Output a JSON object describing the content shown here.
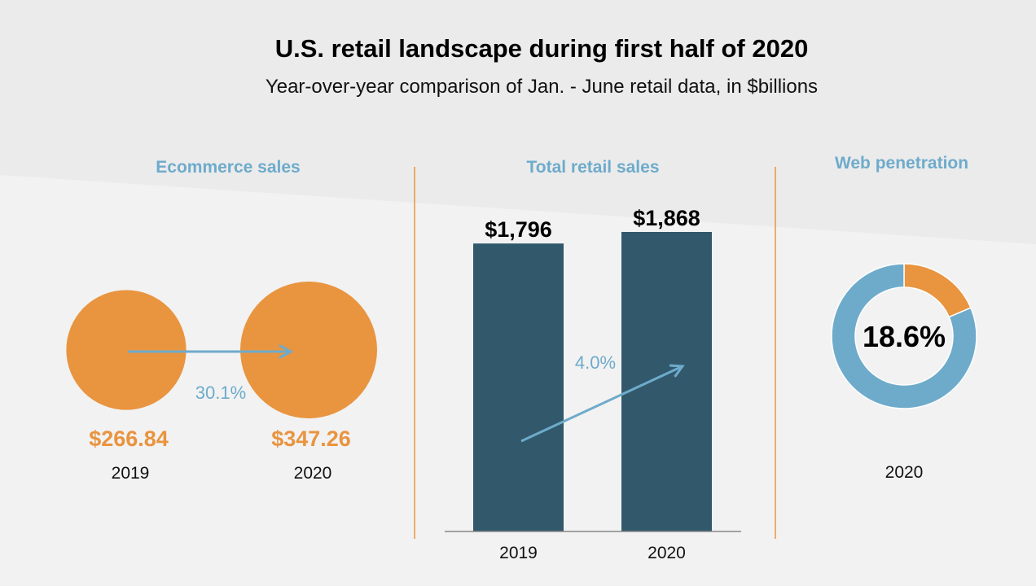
{
  "title": "U.S. retail landscape during first half of 2020",
  "subtitle": "Year-over-year comparison of Jan. - June retail data, in $billions",
  "colors": {
    "orange": "#e9943f",
    "blue": "#6eabcb",
    "navy": "#32586c",
    "divider": "#e9943f"
  },
  "chart_data": [
    {
      "type": "bubble",
      "title": "Ecommerce sales",
      "categories": [
        "2019",
        "2020"
      ],
      "values": [
        266.84,
        347.26
      ],
      "value_labels": [
        "$266.84",
        "$347.26"
      ],
      "change_label": "30.1%"
    },
    {
      "type": "bar",
      "title": "Total retail sales",
      "categories": [
        "2019",
        "2020"
      ],
      "values": [
        1796,
        1868
      ],
      "value_labels": [
        "$1,796",
        "$1,868"
      ],
      "change_label": "4.0%",
      "ylim": [
        0,
        1868
      ]
    },
    {
      "type": "pie",
      "title": "Web penetration",
      "category": "2020",
      "value": 18.6,
      "center_label": "18.6%"
    }
  ]
}
